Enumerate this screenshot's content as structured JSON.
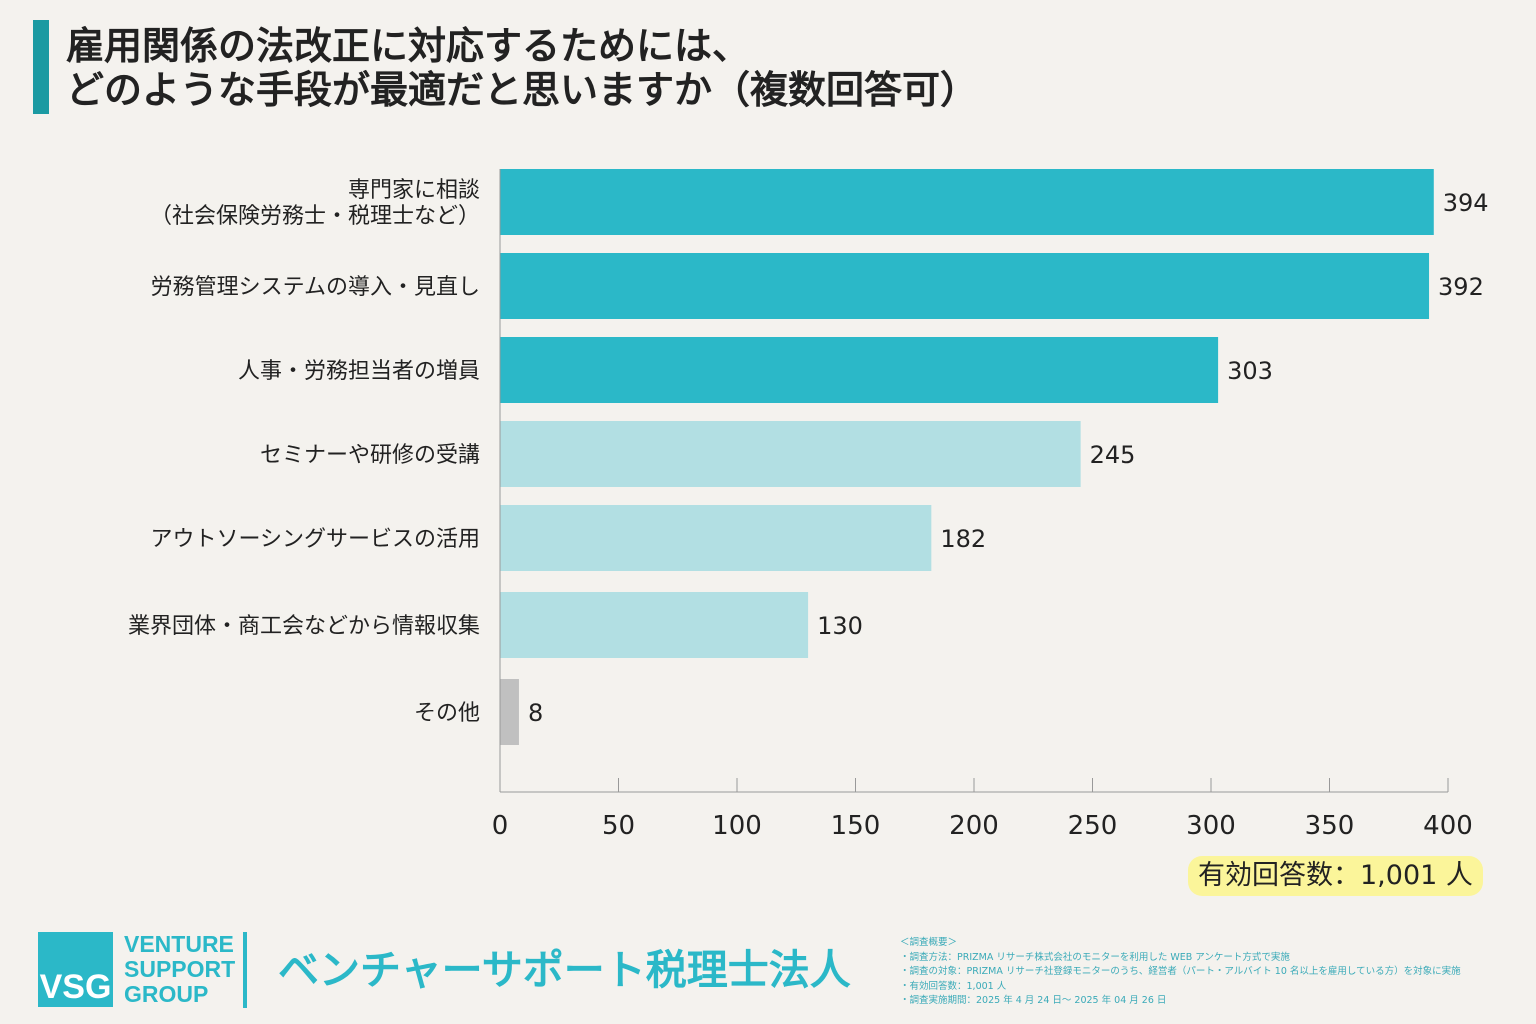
{
  "title": "雇用関係の法改正に対応するためには、\nどのような手段が最適だと思いますか（複数回答可）",
  "chart_data": {
    "type": "bar",
    "orientation": "horizontal",
    "categories": [
      "専門家に相談\n（社会保険労務士・税理士など）",
      "労務管理システムの導入・見直し",
      "人事・労務担当者の増員",
      "セミナーや研修の受講",
      "アウトソーシングサービスの活用",
      "業界団体・商工会などから情報収集",
      "その他"
    ],
    "values": [
      394,
      392,
      303,
      245,
      182,
      130,
      8
    ],
    "bar_colors": [
      "#2bb8c8",
      "#2bb8c8",
      "#2bb8c8",
      "#b2dfe3",
      "#b2dfe3",
      "#b2dfe3",
      "#c0c0c0"
    ],
    "xlim": [
      0,
      400
    ],
    "xticks": [
      0,
      50,
      100,
      150,
      200,
      250,
      300,
      350,
      400
    ],
    "grid": false
  },
  "respondents_badge": "有効回答数：1,001 人",
  "logo": {
    "mark": "VSG",
    "lines": [
      "VENTURE",
      "SUPPORT",
      "GROUP"
    ]
  },
  "company_name": "ベンチャーサポート税理士法人",
  "survey_notes": [
    "＜調査概要＞",
    "・調査方法：PRIZMA リサーチ株式会社のモニターを利用した WEB アンケート方式で実施",
    "・調査の対象：PRIZMA リサーチ社登録モニターのうち、経営者（パート・アルバイト 10 名以上を雇用している方）を対象に実施",
    "・有効回答数：1,001 人",
    "・調査実施期間：2025 年 4 月 24 日～ 2025 年 04 月 26 日"
  ]
}
